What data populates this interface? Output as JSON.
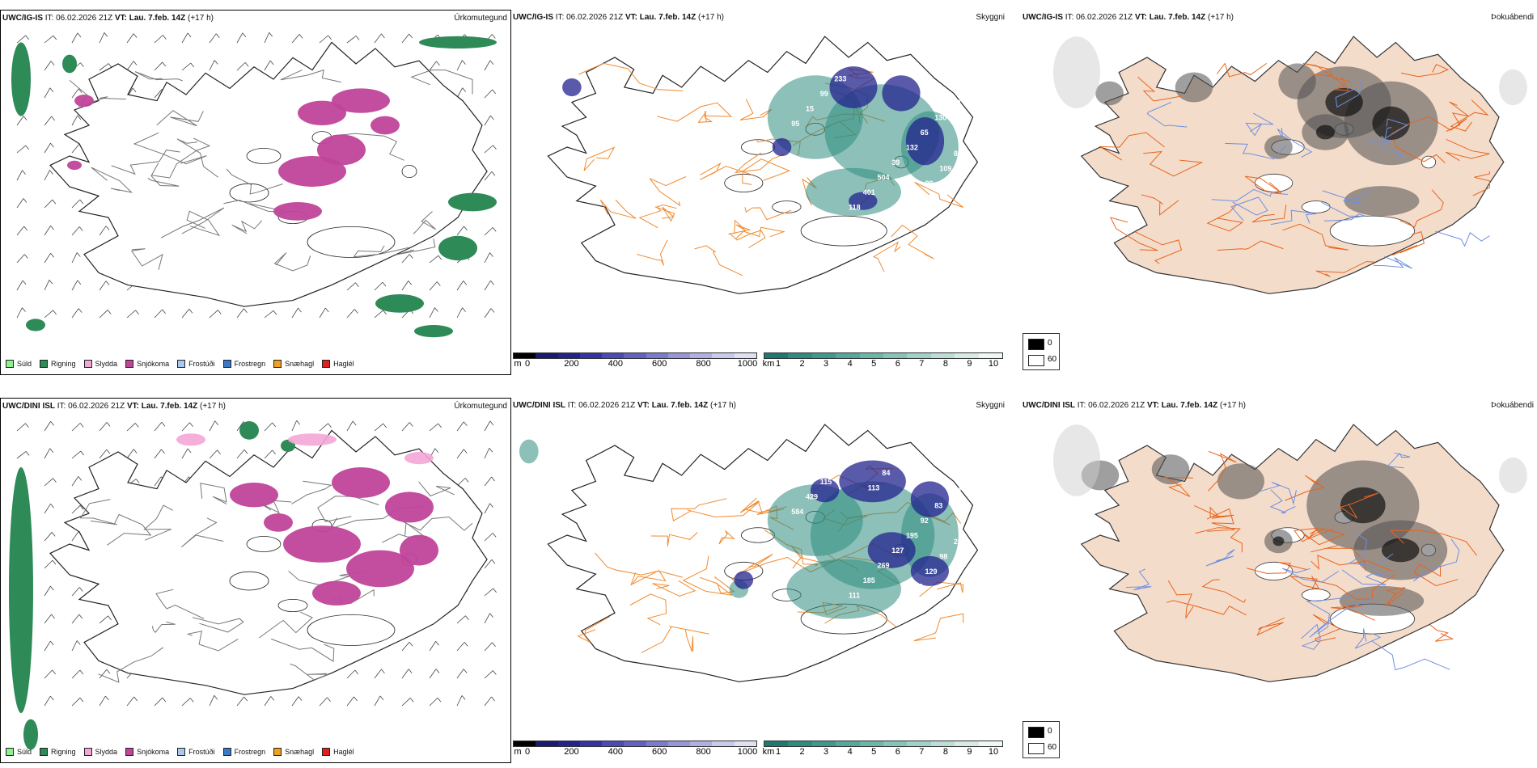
{
  "rows": [
    {
      "precip": {
        "model": "UWC/IG-IS",
        "it_label": "IT:",
        "it": "06.02.2026 21Z",
        "vt_label": "VT:",
        "vt": "Lau. 7.feb. 14Z",
        "lead": "(+17 h)",
        "right": "Úrkomutegund"
      },
      "cloud": {
        "model": "UWC/IG-IS",
        "it_label": "IT:",
        "it": "06.02.2026 21Z",
        "vt_label": "VT:",
        "vt": "Lau. 7.feb. 14Z",
        "lead": "(+17 h)",
        "right": "Skyggni"
      },
      "fog": {
        "model": "UWC/IG-IS",
        "it_label": "IT:",
        "it": "06.02.2026 21Z",
        "vt_label": "VT:",
        "vt": "Lau. 7.feb. 14Z",
        "lead": "(+17 h)",
        "right": "Þokuábendi"
      }
    },
    {
      "precip": {
        "model": "UWC/DINI ISL",
        "it_label": "IT:",
        "it": "06.02.2026 21Z",
        "vt_label": "VT:",
        "vt": "Lau. 7.feb. 14Z",
        "lead": "(+17 h)",
        "right": "Úrkomutegund"
      },
      "cloud": {
        "model": "UWC/DINI ISL",
        "it_label": "IT:",
        "it": "06.02.2026 21Z",
        "vt_label": "VT:",
        "vt": "Lau. 7.feb. 14Z",
        "lead": "(+17 h)",
        "right": "Skyggni"
      },
      "fog": {
        "model": "UWC/DINI ISL",
        "it_label": "IT:",
        "it": "06.02.2026 21Z",
        "vt_label": "VT:",
        "vt": "Lau. 7.feb. 14Z",
        "lead": "(+17 h)",
        "right": "Þokuábendi"
      }
    }
  ],
  "precip_legend": [
    {
      "label": "Súld",
      "color": "#8ef08e"
    },
    {
      "label": "Rigning",
      "color": "#2e8b57"
    },
    {
      "label": "Slydda",
      "color": "#f4a6d7"
    },
    {
      "label": "Snjókoma",
      "color": "#c0449a"
    },
    {
      "label": "Frostúði",
      "color": "#a8c8f0"
    },
    {
      "label": "Frostregn",
      "color": "#3a78c8"
    },
    {
      "label": "Snæhagl",
      "color": "#f0a020"
    },
    {
      "label": "Haglél",
      "color": "#e02020"
    }
  ],
  "cloud_base_bar": {
    "unit": "m",
    "ticks": [
      "0",
      "200",
      "400",
      "600",
      "800",
      "1000"
    ],
    "colors": [
      "#000000",
      "#1a1a6e",
      "#23238f",
      "#3434a6",
      "#4a4ab8",
      "#6262c4",
      "#7c7cce",
      "#9696d8",
      "#b0b0e2",
      "#cacaec",
      "#e0e0f4"
    ]
  },
  "visibility_bar": {
    "unit": "km",
    "ticks": [
      "1",
      "2",
      "3",
      "4",
      "5",
      "6",
      "7",
      "8",
      "9",
      "10"
    ],
    "colors": [
      "#1e7a70",
      "#2e8c80",
      "#3e9a8e",
      "#56a89c",
      "#6cb6aa",
      "#86c4ba",
      "#a0d2c8",
      "#bcded6",
      "#d6ebe6",
      "#f0f8f6"
    ]
  },
  "fog_legend": [
    {
      "label": "0",
      "color": "#000000"
    },
    {
      "label": "60",
      "color": "#ffffff"
    }
  ],
  "row1_cloud_labels": [
    "128",
    "46",
    "110",
    "130",
    "65",
    "132",
    "39",
    "504",
    "401",
    "118",
    "233",
    "99",
    "15",
    "95",
    "231",
    "84",
    "109",
    "89"
  ],
  "row2_cloud_labels": [
    "197",
    "107",
    "280",
    "83",
    "92",
    "195",
    "127",
    "269",
    "185",
    "111",
    "117",
    "115",
    "429",
    "584",
    "194",
    "234",
    "98",
    "129",
    "146",
    "185",
    "84",
    "113"
  ],
  "colors": {
    "land_fog": "#f4dccb",
    "roads": "#e8641c",
    "roads_mid": "#f28a2e",
    "rivers": "#6f8fe0",
    "snow": "#c0449a",
    "rain": "#2e8b57",
    "vis": "#2e8c80",
    "cbase": "#23238f"
  }
}
